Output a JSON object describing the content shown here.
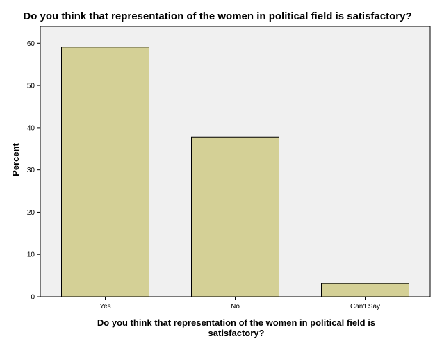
{
  "chart_data": {
    "type": "bar",
    "title": "Do you think that representation of the women in political field is satisfactory?",
    "xlabel_lines": [
      "Do you think that representation of the women in political field is",
      "satisfactory?"
    ],
    "ylabel": "Percent",
    "categories": [
      "Yes",
      "No",
      "Can't Say"
    ],
    "values": [
      59.1,
      37.8,
      3.1
    ],
    "ylim": [
      0,
      64
    ],
    "yticks": [
      0,
      10,
      20,
      30,
      40,
      50,
      60
    ],
    "grid": false,
    "bar_color": "#d4d096",
    "plot_background": "#f0f0f0"
  }
}
